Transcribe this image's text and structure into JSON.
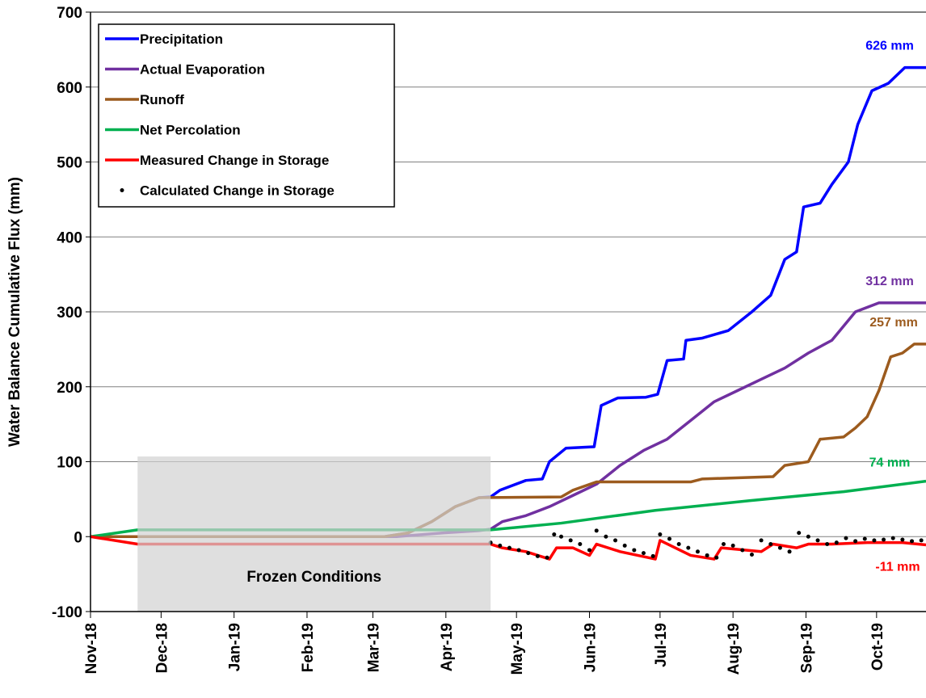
{
  "chart_data": {
    "type": "line",
    "y_label": "Water Balance Cumulative Flux (mm)",
    "xlim": [
      0,
      355
    ],
    "xticks": [
      {
        "value": 0,
        "label": "Nov-18"
      },
      {
        "value": 30,
        "label": "Dec-18"
      },
      {
        "value": 61,
        "label": "Jan-19"
      },
      {
        "value": 92,
        "label": "Feb-19"
      },
      {
        "value": 120,
        "label": "Mar-19"
      },
      {
        "value": 151,
        "label": "Apr-19"
      },
      {
        "value": 181,
        "label": "May-19"
      },
      {
        "value": 212,
        "label": "Jun-19"
      },
      {
        "value": 242,
        "label": "Jul-19"
      },
      {
        "value": 273,
        "label": "Aug-19"
      },
      {
        "value": 304,
        "label": "Sep-19"
      },
      {
        "value": 334,
        "label": "Oct-19"
      }
    ],
    "ylim": [
      -100,
      700
    ],
    "yticks": [
      -100,
      0,
      100,
      200,
      300,
      400,
      500,
      600,
      700
    ],
    "grid": true,
    "legend": "upper left",
    "shaded_region": {
      "label": "Frozen Conditions",
      "x": [
        20,
        170
      ],
      "y": [
        -100,
        107
      ]
    },
    "series": [
      {
        "name": "Precipitation",
        "color": "#0000ff",
        "end_label": "626 mm",
        "x": [
          0,
          125,
          135,
          145,
          155,
          165,
          170,
          174,
          185,
          192,
          195,
          202,
          214,
          217,
          224,
          236,
          241,
          245,
          252,
          253,
          260,
          271,
          281,
          289,
          295,
          300,
          303,
          310,
          315,
          322,
          326,
          332,
          339,
          346,
          355
        ],
        "values": [
          0,
          0,
          5,
          20,
          40,
          52,
          53,
          62,
          75,
          77,
          100,
          118,
          120,
          175,
          185,
          186,
          190,
          235,
          237,
          262,
          265,
          275,
          300,
          322,
          370,
          380,
          440,
          445,
          470,
          500,
          550,
          595,
          605,
          626,
          626
        ]
      },
      {
        "name": "Actual Evaporation",
        "color": "#7030a0",
        "end_label": "312 mm",
        "x": [
          0,
          130,
          150,
          165,
          170,
          175,
          185,
          195,
          205,
          215,
          225,
          235,
          245,
          255,
          265,
          275,
          285,
          295,
          305,
          315,
          325,
          335,
          355
        ],
        "values": [
          0,
          0,
          5,
          8,
          10,
          20,
          28,
          40,
          55,
          70,
          95,
          115,
          130,
          155,
          180,
          195,
          210,
          225,
          245,
          262,
          300,
          312,
          312
        ]
      },
      {
        "name": "Runoff",
        "color": "#9c5b1e",
        "end_label": "257 mm",
        "x": [
          0,
          125,
          135,
          145,
          155,
          165,
          200,
          205,
          215,
          255,
          260,
          290,
          295,
          305,
          310,
          320,
          325,
          330,
          335,
          340,
          345,
          350,
          355
        ],
        "values": [
          0,
          0,
          5,
          20,
          40,
          52,
          53,
          62,
          73,
          73,
          77,
          80,
          95,
          100,
          130,
          133,
          145,
          160,
          195,
          240,
          245,
          257,
          257
        ]
      },
      {
        "name": "Net Percolation",
        "color": "#00b050",
        "end_label": "74 mm",
        "x": [
          0,
          20,
          170,
          200,
          240,
          280,
          320,
          355
        ],
        "values": [
          0,
          9,
          9,
          18,
          35,
          48,
          60,
          74
        ]
      },
      {
        "name": "Measured Change in Storage",
        "color": "#ff0000",
        "end_label": "-11 mm",
        "x": [
          0,
          20,
          170,
          175,
          185,
          195,
          198,
          205,
          212,
          215,
          225,
          240,
          242,
          255,
          265,
          268,
          285,
          290,
          300,
          305,
          315,
          330,
          345,
          355
        ],
        "values": [
          0,
          -10,
          -10,
          -15,
          -20,
          -30,
          -15,
          -15,
          -25,
          -10,
          -20,
          -30,
          -5,
          -25,
          -30,
          -15,
          -20,
          -10,
          -15,
          -10,
          -10,
          -8,
          -8,
          -11
        ]
      },
      {
        "name": "Calculated Change in Storage",
        "color": "#000000",
        "marker": "dot",
        "x": [
          170,
          174,
          178,
          182,
          186,
          190,
          194,
          197,
          200,
          204,
          208,
          212,
          215,
          219,
          223,
          227,
          231,
          235,
          239,
          242,
          246,
          250,
          254,
          258,
          262,
          266,
          269,
          273,
          277,
          281,
          285,
          289,
          293,
          297,
          301,
          305,
          309,
          313,
          317,
          321,
          325,
          329,
          333,
          337,
          341,
          345,
          349,
          353
        ],
        "values": [
          -8,
          -12,
          -15,
          -18,
          -22,
          -26,
          -28,
          3,
          0,
          -5,
          -10,
          -18,
          8,
          0,
          -5,
          -12,
          -18,
          -22,
          -26,
          3,
          -3,
          -10,
          -15,
          -20,
          -25,
          -28,
          -10,
          -12,
          -18,
          -24,
          -5,
          -10,
          -15,
          -20,
          5,
          0,
          -5,
          -10,
          -8,
          -2,
          -6,
          -3,
          -5,
          -4,
          -2,
          -4,
          -6,
          -5
        ]
      }
    ]
  }
}
